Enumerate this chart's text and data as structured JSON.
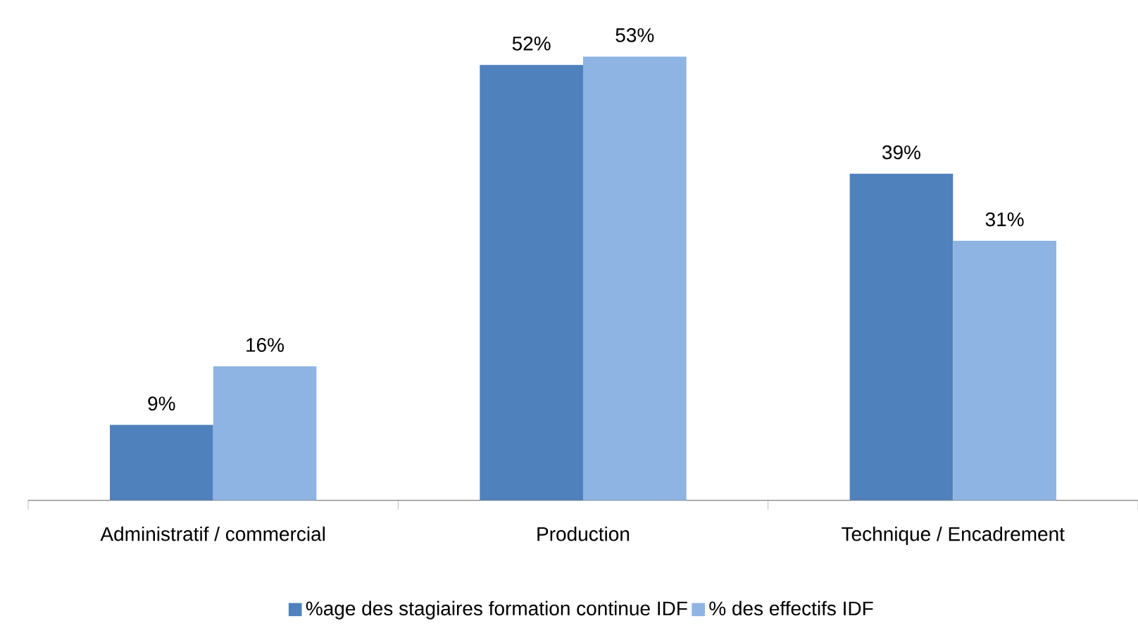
{
  "chart_data": {
    "type": "bar",
    "categories": [
      "Administratif / commercial",
      "Production",
      "Technique / Encadrement"
    ],
    "series": [
      {
        "name": "%age des stagiaires formation continue IDF",
        "color": "#4f81bd",
        "values": [
          9,
          52,
          39
        ],
        "value_labels": [
          "9%",
          "52%",
          "39%"
        ]
      },
      {
        "name": "% des effectifs IDF",
        "color": "#8eb4e3",
        "values": [
          16,
          53,
          31
        ],
        "value_labels": [
          "16%",
          "53%",
          "31%"
        ]
      }
    ],
    "legend": "bottom",
    "grid": false
  }
}
